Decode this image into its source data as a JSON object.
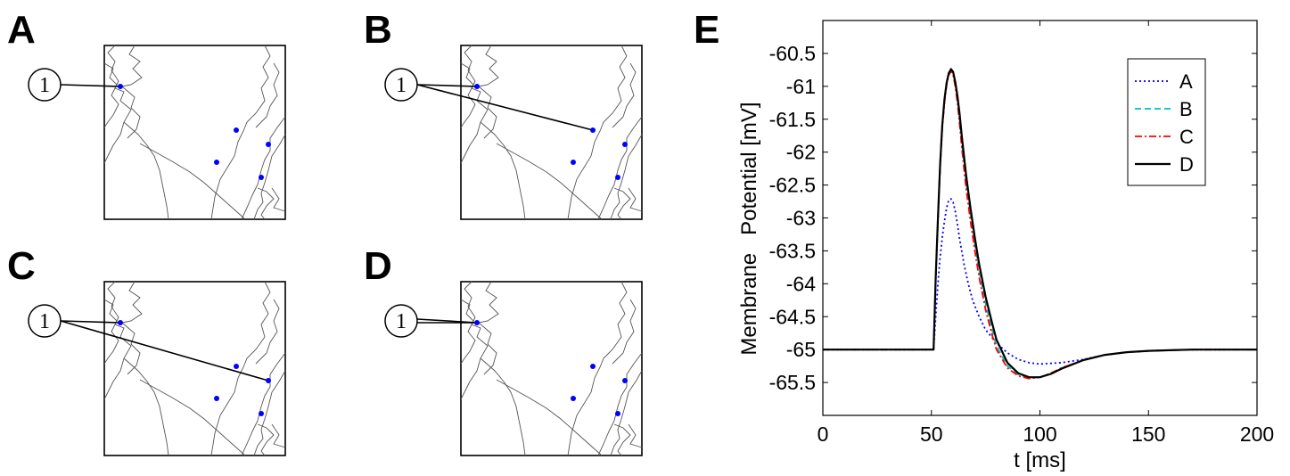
{
  "panels": [
    {
      "label": "A",
      "node": "1",
      "connect": [
        0
      ]
    },
    {
      "label": "B",
      "node": "1",
      "connect": [
        0,
        1
      ]
    },
    {
      "label": "C",
      "node": "1",
      "connect": [
        0,
        3
      ]
    },
    {
      "label": "D",
      "node": "1",
      "connect": [
        0,
        0
      ]
    }
  ],
  "neuron_color": "#0000ff",
  "chart_data": {
    "panel_label": "E",
    "type": "line",
    "xlabel": "t [ms]",
    "ylabel": "Membrane   Potential [mV]",
    "xlim": [
      0,
      200
    ],
    "ylim": [
      -66,
      -60
    ],
    "xticks": [
      "0",
      "50",
      "100",
      "150",
      "200"
    ],
    "yticks": [
      "-60.5",
      "-61",
      "-61.5",
      "-62",
      "-62.5",
      "-63",
      "-63.5",
      "-64",
      "-64.5",
      "-65",
      "-65.5"
    ],
    "legend": {
      "position": "top-right"
    },
    "series": [
      {
        "name": "A",
        "color": "#0000ff",
        "style": "dotted",
        "x": [
          0,
          51,
          52,
          53,
          54,
          55,
          56,
          57,
          58,
          59,
          60,
          61,
          62,
          63,
          64,
          65,
          67,
          69,
          72,
          75,
          80,
          85,
          90,
          95,
          100,
          110,
          120,
          130,
          140,
          150,
          160,
          175,
          200
        ],
        "y": [
          -65,
          -65,
          -64.5,
          -64,
          -63.6,
          -63.3,
          -63.05,
          -62.85,
          -62.73,
          -62.71,
          -62.76,
          -62.9,
          -63.1,
          -63.32,
          -63.5,
          -63.7,
          -64.0,
          -64.25,
          -64.5,
          -64.7,
          -64.9,
          -65.05,
          -65.15,
          -65.2,
          -65.22,
          -65.2,
          -65.15,
          -65.08,
          -65.04,
          -65.02,
          -65.01,
          -65,
          -65
        ]
      },
      {
        "name": "B",
        "color": "#00bfbf",
        "style": "dashed",
        "x": [
          0,
          51,
          52,
          53,
          54,
          55,
          56,
          57,
          58,
          59,
          60,
          61,
          62,
          63,
          64,
          66,
          68,
          70,
          72,
          75,
          78,
          80,
          85,
          90,
          95,
          100,
          105,
          110,
          120,
          130,
          140,
          150,
          160,
          170,
          200
        ],
        "y": [
          -65,
          -65,
          -63.9,
          -63,
          -62.2,
          -61.6,
          -61.2,
          -60.95,
          -60.8,
          -60.73,
          -60.78,
          -60.95,
          -61.2,
          -61.5,
          -61.85,
          -62.45,
          -62.95,
          -63.4,
          -63.8,
          -64.3,
          -64.7,
          -64.95,
          -65.25,
          -65.38,
          -65.43,
          -65.42,
          -65.36,
          -65.28,
          -65.16,
          -65.08,
          -65.04,
          -65.02,
          -65.01,
          -65,
          -65
        ]
      },
      {
        "name": "C",
        "color": "#ff0000",
        "style": "dashdot",
        "x": [
          0,
          51,
          52,
          53,
          54,
          55,
          56,
          57,
          58,
          59,
          60,
          61,
          62,
          63,
          64,
          66,
          68,
          70,
          72,
          75,
          78,
          80,
          85,
          90,
          95,
          100,
          105,
          110,
          120,
          130,
          140,
          150,
          160,
          170,
          200
        ],
        "y": [
          -65,
          -65,
          -63.95,
          -63.05,
          -62.25,
          -61.65,
          -61.25,
          -60.98,
          -60.83,
          -60.77,
          -60.83,
          -61.0,
          -61.25,
          -61.57,
          -61.92,
          -62.55,
          -63.05,
          -63.5,
          -63.9,
          -64.4,
          -64.78,
          -65.0,
          -65.28,
          -65.4,
          -65.44,
          -65.42,
          -65.36,
          -65.28,
          -65.16,
          -65.08,
          -65.04,
          -65.02,
          -65.01,
          -65,
          -65
        ]
      },
      {
        "name": "D",
        "color": "#000000",
        "style": "solid",
        "x": [
          0,
          51,
          52,
          53,
          54,
          55,
          56,
          57,
          58,
          59,
          60,
          61,
          62,
          63,
          64,
          66,
          68,
          70,
          72,
          75,
          78,
          80,
          85,
          90,
          95,
          100,
          105,
          110,
          120,
          130,
          140,
          150,
          160,
          170,
          200
        ],
        "y": [
          -65,
          -65,
          -63.9,
          -63,
          -62.2,
          -61.6,
          -61.2,
          -60.95,
          -60.8,
          -60.74,
          -60.78,
          -60.93,
          -61.15,
          -61.42,
          -61.75,
          -62.35,
          -62.85,
          -63.3,
          -63.7,
          -64.2,
          -64.6,
          -64.85,
          -65.2,
          -65.36,
          -65.42,
          -65.42,
          -65.37,
          -65.29,
          -65.16,
          -65.08,
          -65.04,
          -65.02,
          -65.01,
          -65,
          -65
        ]
      }
    ]
  }
}
